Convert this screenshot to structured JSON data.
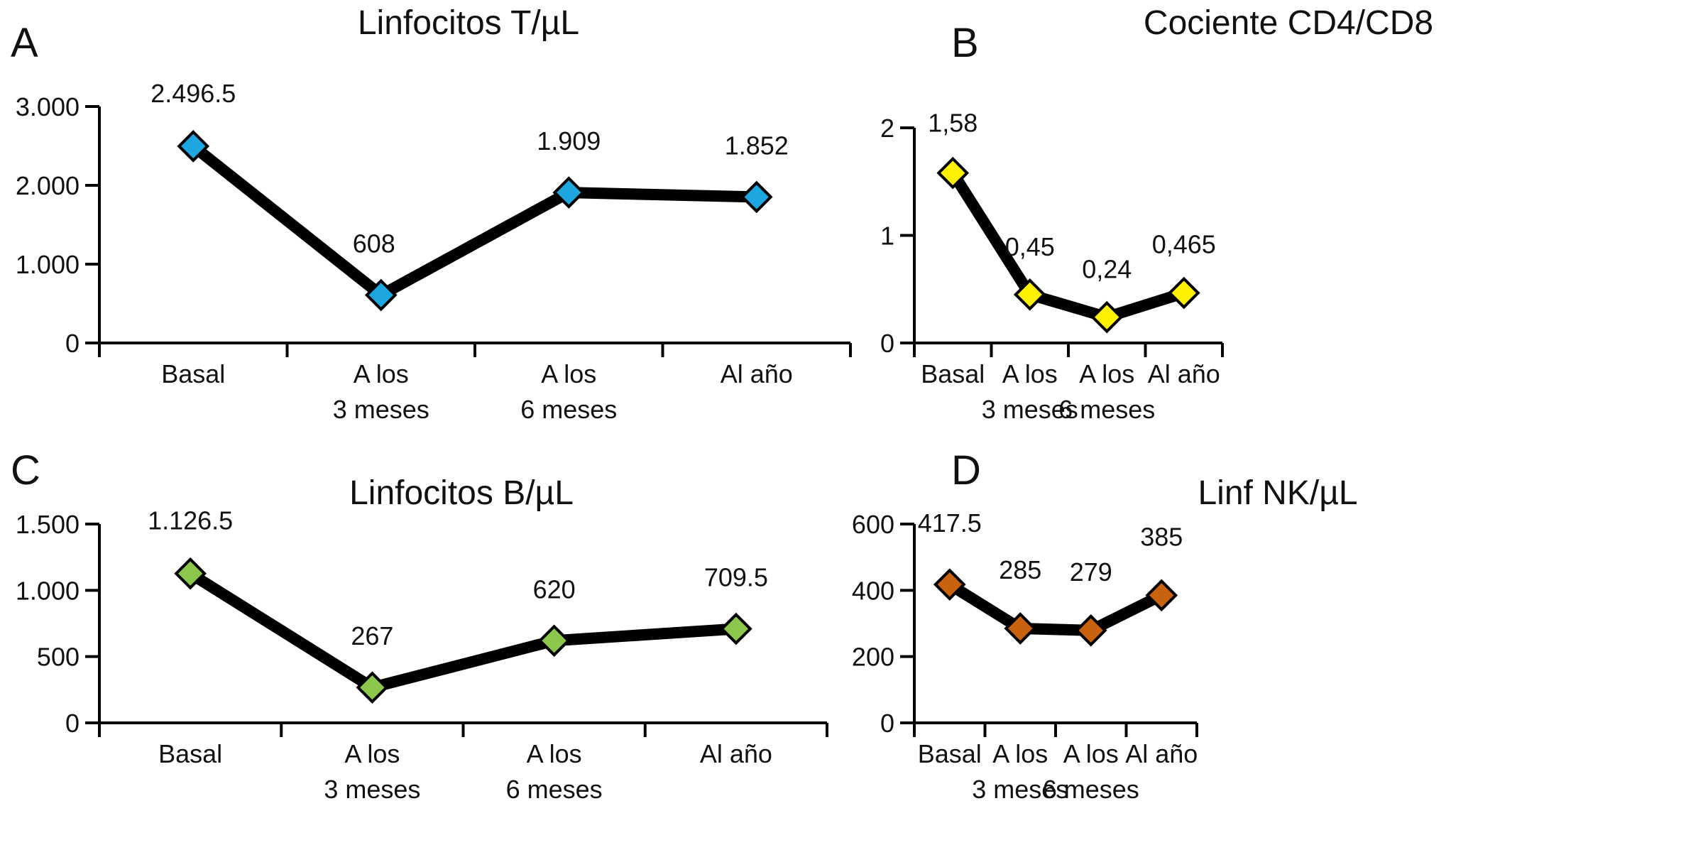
{
  "chart_data": [
    {
      "type": "line",
      "panel": "A",
      "title": "Linfocitos T/µL",
      "xlabel": "",
      "ylabel": "",
      "categories": [
        [
          "Basal"
        ],
        [
          "A los",
          "3 meses"
        ],
        [
          "A los",
          "6 meses"
        ],
        [
          "Al año"
        ]
      ],
      "values": [
        2496.5,
        608,
        1909,
        1852
      ],
      "data_labels": [
        "2.496.5",
        "608",
        "1.909",
        "1.852"
      ],
      "ylim": [
        0,
        3000
      ],
      "yticks": [
        0,
        1000,
        2000,
        3000
      ],
      "ytick_labels": [
        "0",
        "1.000",
        "2.000",
        "3.000"
      ],
      "marker": "diamond",
      "marker_color": "#1ea6e0",
      "line_color": "#000000",
      "grid": false
    },
    {
      "type": "line",
      "panel": "B",
      "title": "Cociente CD4/CD8",
      "xlabel": "",
      "ylabel": "",
      "categories": [
        [
          "Basal"
        ],
        [
          "A los",
          "3 meses"
        ],
        [
          "A los",
          "6 meses"
        ],
        [
          "Al año"
        ]
      ],
      "values": [
        1.58,
        0.45,
        0.24,
        0.465
      ],
      "data_labels": [
        "1,58",
        "0,45",
        "0,24",
        "0,465"
      ],
      "ylim": [
        0,
        2
      ],
      "yticks": [
        0,
        1,
        2
      ],
      "ytick_labels": [
        "0",
        "1",
        "2"
      ],
      "marker": "diamond",
      "marker_color": "#fff200",
      "line_color": "#000000",
      "grid": false
    },
    {
      "type": "line",
      "panel": "C",
      "title": "Linfocitos B/µL",
      "xlabel": "",
      "ylabel": "",
      "categories": [
        [
          "Basal"
        ],
        [
          "A los",
          "3 meses"
        ],
        [
          "A los",
          "6 meses"
        ],
        [
          "Al año"
        ]
      ],
      "values": [
        1126.5,
        267,
        620,
        709.5
      ],
      "data_labels": [
        "1.126.5",
        "267",
        "620",
        "709.5"
      ],
      "ylim": [
        0,
        1500
      ],
      "yticks": [
        0,
        500,
        1000,
        1500
      ],
      "ytick_labels": [
        "0",
        "500",
        "1.000",
        "1.500"
      ],
      "marker": "diamond",
      "marker_color": "#8cc64a",
      "line_color": "#000000",
      "grid": false
    },
    {
      "type": "line",
      "panel": "D",
      "title": "Linf NK/µL",
      "xlabel": "",
      "ylabel": "",
      "categories": [
        [
          "Basal"
        ],
        [
          "A los",
          "3 meses"
        ],
        [
          "A los",
          "6 meses"
        ],
        [
          "Al año"
        ]
      ],
      "values": [
        417.5,
        285,
        279,
        385
      ],
      "data_labels": [
        "417.5",
        "285",
        "279",
        "385"
      ],
      "ylim": [
        0,
        600
      ],
      "yticks": [
        0,
        200,
        400,
        600
      ],
      "ytick_labels": [
        "0",
        "200",
        "400",
        "600"
      ],
      "marker": "diamond",
      "marker_color": "#c8620e",
      "line_color": "#000000",
      "grid": false
    }
  ]
}
